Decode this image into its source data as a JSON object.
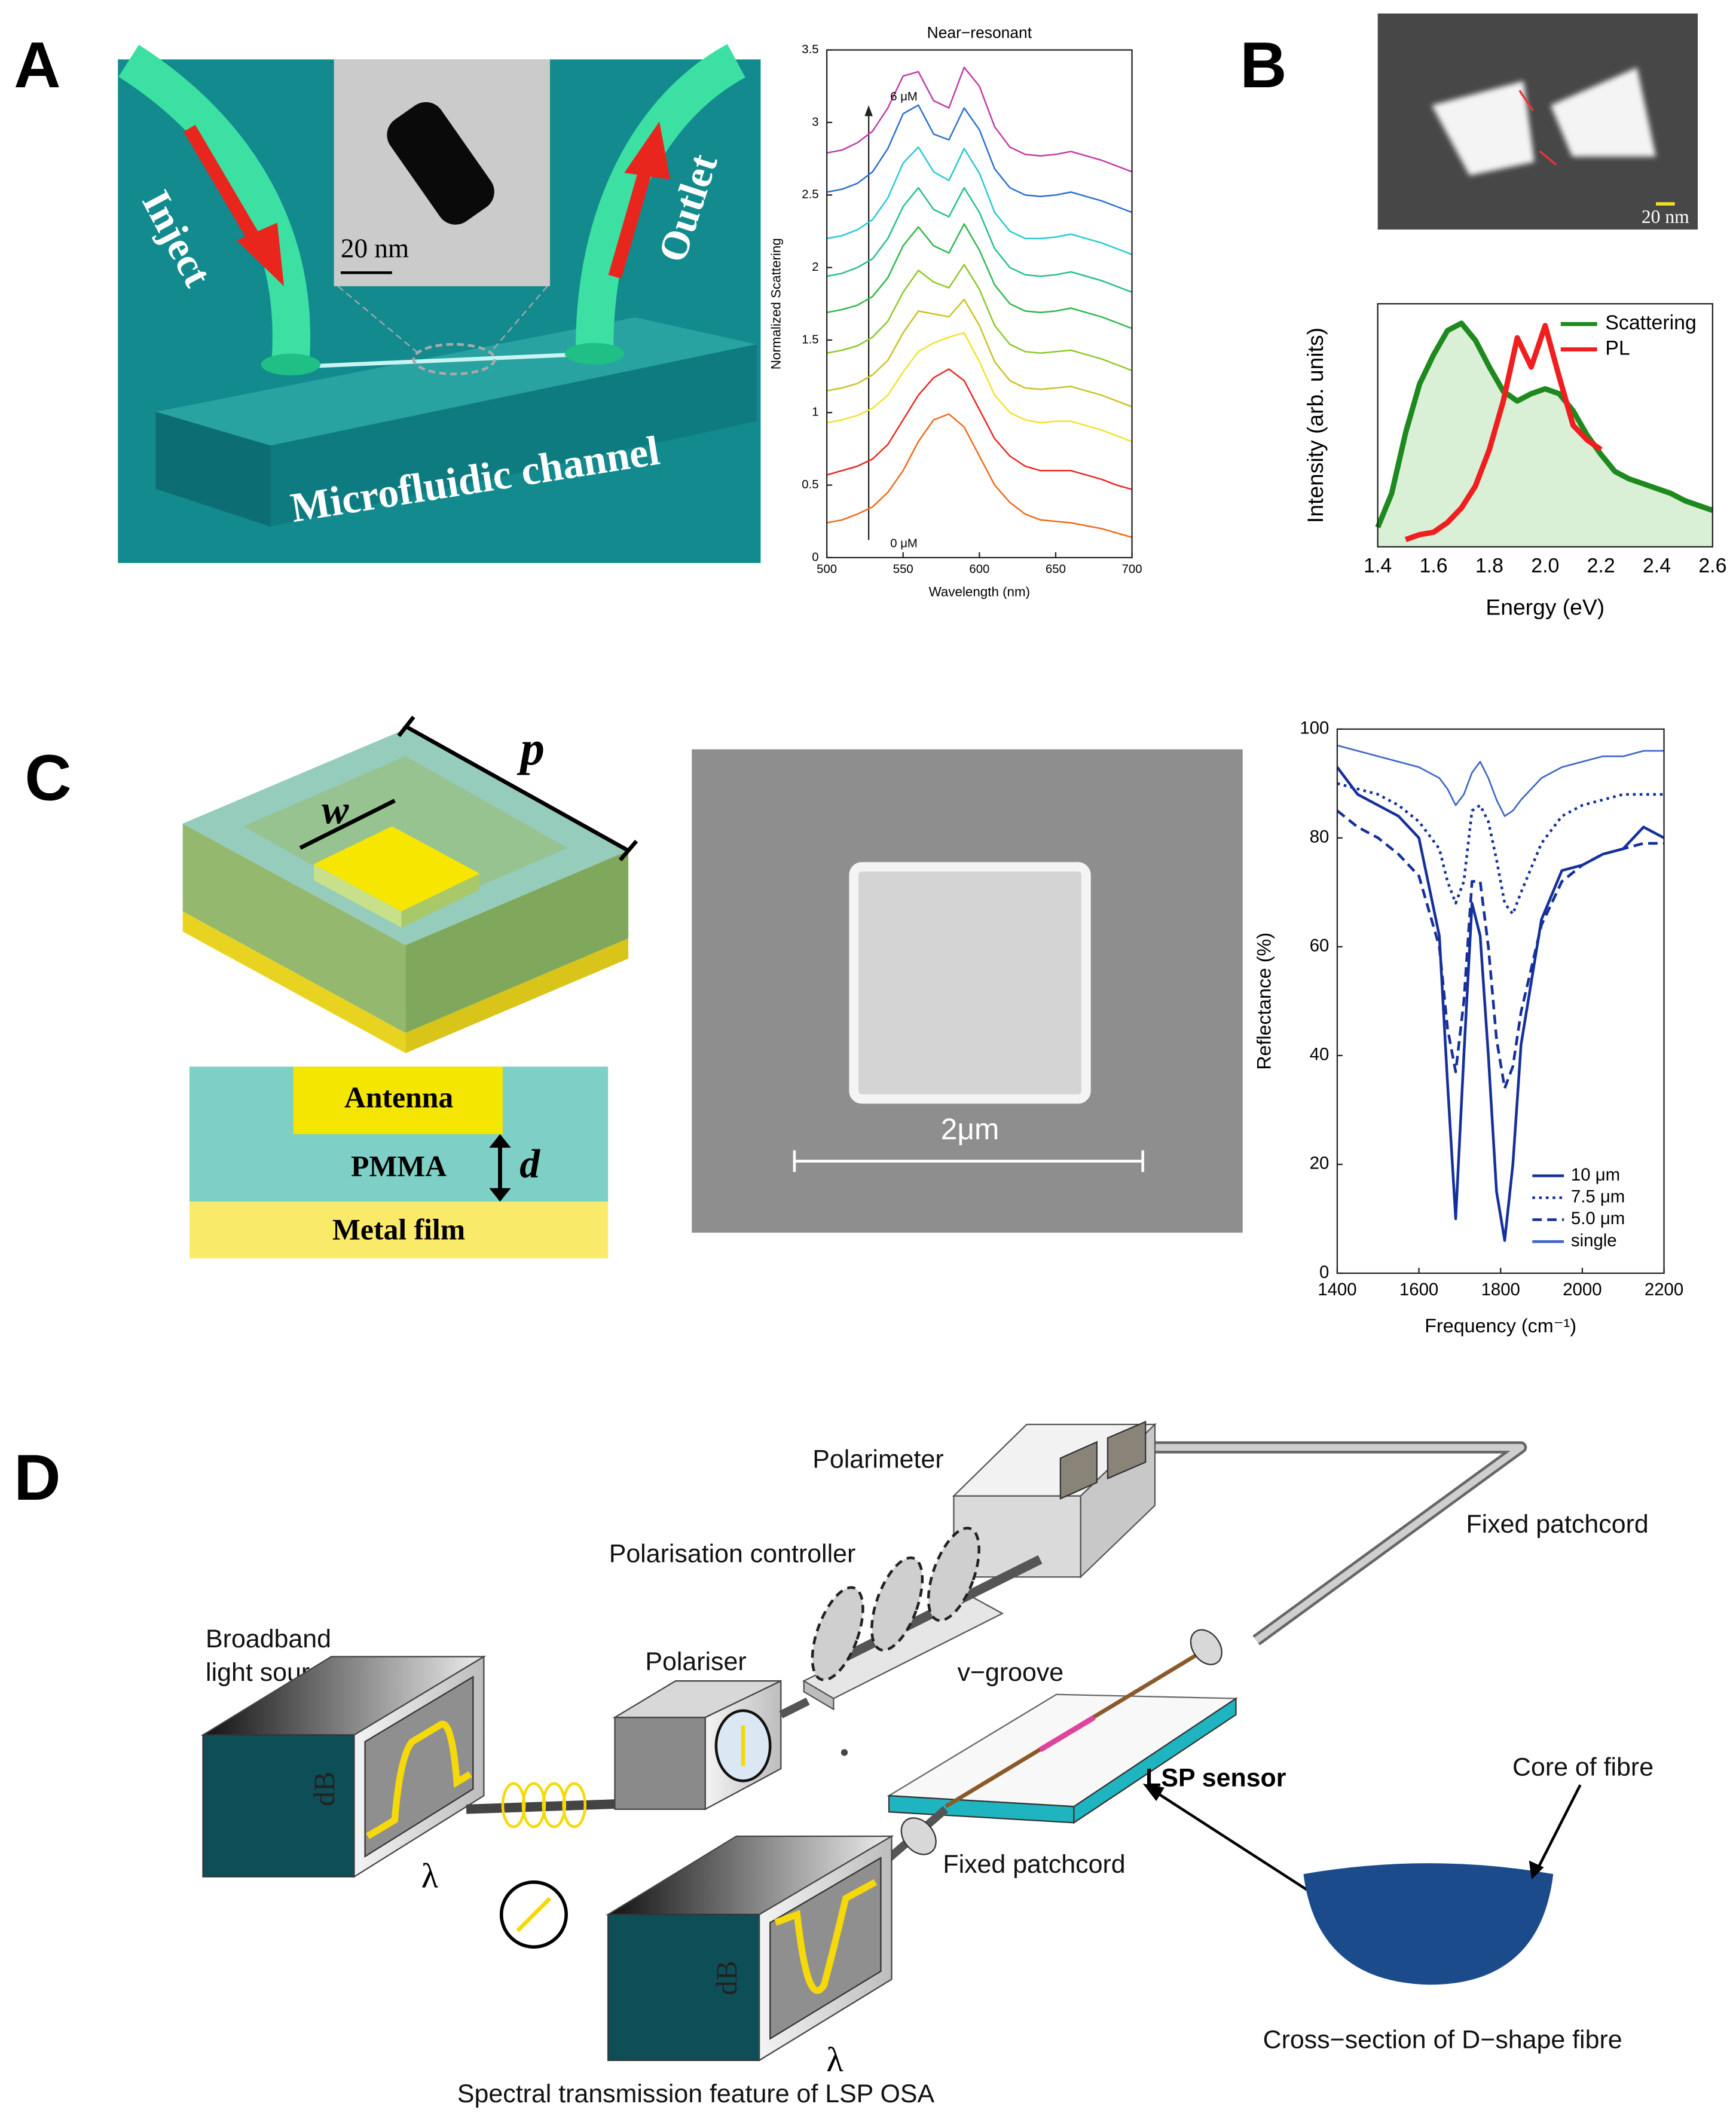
{
  "panels": {
    "A": {
      "label": "A",
      "inject": "Inject",
      "outlet": "Outlet",
      "scale_bar": "20 nm",
      "channel": "Microfluidic channel"
    },
    "B": {
      "label": "B",
      "scale_bar": "20 nm"
    },
    "C": {
      "label": "C",
      "period": "p",
      "width": "w",
      "antenna": "Antenna",
      "spacer": "PMMA",
      "thickness": "d",
      "metal": "Metal film",
      "scale_bar": "2μm"
    },
    "D": {
      "label": "D",
      "polarimeter": "Polarimeter",
      "patchcord_top": "Fixed patchcord",
      "controller": "Polarisation controller",
      "source": [
        "Broadband",
        "light source"
      ],
      "polariser": "Polariser",
      "groove": "v−groove",
      "sensor": "LSP sensor",
      "core": "Core of fibre",
      "source_y": "dB",
      "source_x": "λ",
      "osa_y": "dB",
      "osa_x": "λ",
      "patchcord_bottom": "Fixed patchcord",
      "cross_section": "Cross−section of D−shape fibre",
      "caption": "Spectral transmission feature of LSP OSA"
    }
  },
  "chart_data": [
    {
      "type": "line",
      "title": "Near−resonant",
      "x_label": "Wavelength (nm)",
      "y_label": "Normalized Scattering",
      "x": [
        500,
        510,
        520,
        530,
        540,
        550,
        560,
        570,
        580,
        590,
        600,
        610,
        620,
        630,
        640,
        650,
        660,
        670,
        680,
        690,
        700
      ],
      "xlim": [
        500,
        700
      ],
      "xticks": [
        500,
        550,
        600,
        650,
        700
      ],
      "ylim": [
        0,
        3.5
      ],
      "yticks": [
        0,
        0.5,
        1,
        1.5,
        2,
        2.5,
        3,
        3.5
      ],
      "annotations": [
        "6 μM",
        "0 μM"
      ],
      "series": [
        {
          "color": "#f06a1a",
          "values": [
            0.24,
            0.26,
            0.3,
            0.35,
            0.45,
            0.6,
            0.8,
            0.95,
            0.99,
            0.9,
            0.7,
            0.5,
            0.38,
            0.3,
            0.26,
            0.25,
            0.24,
            0.22,
            0.2,
            0.17,
            0.14
          ]
        },
        {
          "color": "#e8271f",
          "values": [
            0.57,
            0.6,
            0.63,
            0.68,
            0.78,
            0.95,
            1.12,
            1.24,
            1.3,
            1.22,
            1.02,
            0.82,
            0.7,
            0.63,
            0.6,
            0.6,
            0.6,
            0.57,
            0.54,
            0.5,
            0.47
          ]
        },
        {
          "color": "#f2e22a",
          "values": [
            0.93,
            0.95,
            0.98,
            1.03,
            1.12,
            1.28,
            1.42,
            1.48,
            1.52,
            1.55,
            1.35,
            1.12,
            1.0,
            0.95,
            0.93,
            0.94,
            0.94,
            0.91,
            0.88,
            0.84,
            0.8
          ]
        },
        {
          "color": "#c9c21f",
          "values": [
            1.15,
            1.17,
            1.2,
            1.26,
            1.36,
            1.55,
            1.7,
            1.68,
            1.66,
            1.78,
            1.6,
            1.35,
            1.22,
            1.17,
            1.16,
            1.17,
            1.18,
            1.15,
            1.12,
            1.08,
            1.04
          ]
        },
        {
          "color": "#8ac926",
          "values": [
            1.41,
            1.43,
            1.46,
            1.52,
            1.63,
            1.83,
            1.98,
            1.9,
            1.86,
            2.02,
            1.85,
            1.6,
            1.47,
            1.42,
            1.41,
            1.42,
            1.43,
            1.4,
            1.37,
            1.33,
            1.29
          ]
        },
        {
          "color": "#2db84a",
          "values": [
            1.69,
            1.71,
            1.74,
            1.8,
            1.93,
            2.15,
            2.28,
            2.15,
            2.1,
            2.3,
            2.12,
            1.88,
            1.75,
            1.7,
            1.69,
            1.7,
            1.72,
            1.69,
            1.66,
            1.62,
            1.58
          ]
        },
        {
          "color": "#20c08c",
          "values": [
            1.94,
            1.96,
            2.0,
            2.06,
            2.2,
            2.42,
            2.55,
            2.4,
            2.35,
            2.55,
            2.38,
            2.13,
            2.0,
            1.95,
            1.94,
            1.95,
            1.97,
            1.94,
            1.91,
            1.87,
            1.83
          ]
        },
        {
          "color": "#25c9d6",
          "values": [
            2.2,
            2.22,
            2.26,
            2.33,
            2.48,
            2.72,
            2.83,
            2.66,
            2.6,
            2.82,
            2.65,
            2.38,
            2.25,
            2.2,
            2.2,
            2.21,
            2.23,
            2.2,
            2.17,
            2.13,
            2.09
          ]
        },
        {
          "color": "#2a6fd0",
          "values": [
            2.52,
            2.54,
            2.58,
            2.66,
            2.82,
            3.06,
            3.12,
            2.92,
            2.88,
            3.1,
            2.95,
            2.68,
            2.55,
            2.5,
            2.49,
            2.5,
            2.52,
            2.49,
            2.46,
            2.42,
            2.38
          ]
        },
        {
          "color": "#c03aa8",
          "values": [
            2.79,
            2.81,
            2.86,
            2.94,
            3.1,
            3.32,
            3.35,
            3.15,
            3.1,
            3.38,
            3.25,
            2.97,
            2.83,
            2.78,
            2.77,
            2.78,
            2.8,
            2.77,
            2.74,
            2.7,
            2.66
          ]
        }
      ]
    },
    {
      "type": "line",
      "x_label": "Energy (eV)",
      "y_label": "Intensity (arb. units)",
      "xlim": [
        1.4,
        2.6
      ],
      "xticks": [
        1.4,
        1.6,
        1.8,
        {
          "value": 2,
          "label": "2.0"
        },
        2.2,
        2.4,
        2.6
      ],
      "ylim": [
        0,
        1
      ],
      "legend": "upper right",
      "series": [
        {
          "name": "Scattering",
          "color": "#1e8a1e",
          "fill": "#d9f0d6",
          "x": [
            1.4,
            1.45,
            1.5,
            1.55,
            1.6,
            1.65,
            1.7,
            1.75,
            1.8,
            1.85,
            1.9,
            1.95,
            2.0,
            2.05,
            2.1,
            2.15,
            2.2,
            2.25,
            2.3,
            2.35,
            2.4,
            2.45,
            2.5,
            2.55,
            2.6
          ],
          "values": [
            0.08,
            0.22,
            0.47,
            0.67,
            0.79,
            0.89,
            0.92,
            0.85,
            0.74,
            0.64,
            0.6,
            0.63,
            0.65,
            0.63,
            0.56,
            0.46,
            0.38,
            0.31,
            0.28,
            0.26,
            0.24,
            0.22,
            0.19,
            0.17,
            0.15
          ]
        },
        {
          "name": "PL",
          "color": "#f01e1e",
          "x": [
            1.5,
            1.55,
            1.6,
            1.65,
            1.7,
            1.75,
            1.8,
            1.85,
            1.9,
            1.95,
            2.0,
            2.05,
            2.1,
            2.15,
            2.2
          ],
          "values": [
            0.03,
            0.05,
            0.06,
            0.1,
            0.16,
            0.25,
            0.4,
            0.6,
            0.86,
            0.74,
            0.91,
            0.7,
            0.5,
            0.44,
            0.4
          ]
        }
      ]
    },
    {
      "type": "line",
      "x_label": "Frequency (cm⁻¹)",
      "y_label": "Reflectance (%)",
      "x": [
        1400,
        1450,
        1500,
        1550,
        1600,
        1650,
        1670,
        1690,
        1710,
        1730,
        1750,
        1770,
        1790,
        1810,
        1830,
        1850,
        1900,
        1950,
        2000,
        2050,
        2100,
        2150,
        2200
      ],
      "xlim": [
        1400,
        2200
      ],
      "xticks": [
        1400,
        1600,
        1800,
        2000,
        2200
      ],
      "ylim": [
        0,
        100
      ],
      "yticks": [
        0,
        20,
        40,
        60,
        80,
        100
      ],
      "legend": "lower right",
      "series": [
        {
          "name": "10  μm",
          "color": "#15309a",
          "dash": "solid",
          "values": [
            93,
            88,
            86,
            84,
            80,
            62,
            35,
            10,
            40,
            68,
            62,
            40,
            15,
            6,
            20,
            42,
            65,
            74,
            75,
            77,
            78,
            82,
            80
          ]
        },
        {
          "name": "7.5 μm",
          "color": "#15309a",
          "dash": "dotted",
          "values": [
            90,
            89,
            88,
            86,
            83,
            78,
            72,
            68,
            72,
            85,
            86,
            83,
            76,
            68,
            66,
            70,
            79,
            84,
            86,
            87,
            88,
            88,
            88
          ]
        },
        {
          "name": "5.0 μm",
          "color": "#15309a",
          "dash": "dashed",
          "values": [
            85,
            82,
            80,
            77,
            73,
            60,
            45,
            37,
            50,
            72,
            72,
            60,
            43,
            34,
            38,
            48,
            64,
            72,
            75,
            77,
            78,
            79,
            79
          ]
        },
        {
          "name": "single",
          "color": "#3e67c8",
          "dash": "solid",
          "values": [
            97,
            96,
            95,
            94,
            93,
            91,
            89,
            86,
            88,
            92,
            94,
            91,
            87,
            84,
            85,
            87,
            91,
            93,
            94,
            95,
            95,
            96,
            96
          ]
        }
      ]
    }
  ]
}
